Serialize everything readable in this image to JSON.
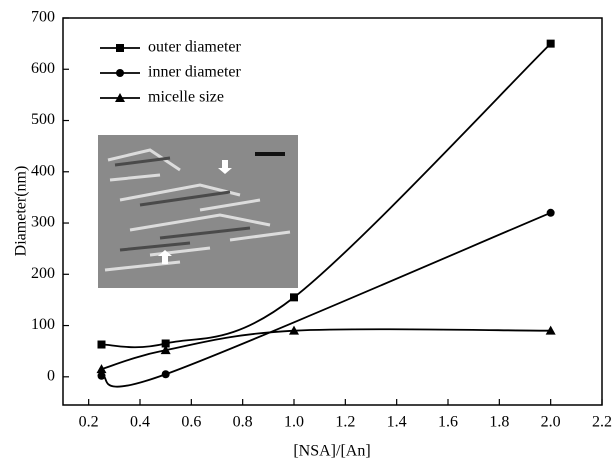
{
  "chart_data": {
    "type": "line",
    "xlabel": "[NSA]/[An]",
    "ylabel": "Diameter(nm)",
    "xlim": [
      0.1,
      2.2
    ],
    "ylim": [
      -55,
      700
    ],
    "xticks": [
      0.2,
      0.4,
      0.6,
      0.8,
      {
        "value": 1,
        "label": "1.0"
      },
      1.2,
      1.4,
      1.6,
      1.8,
      {
        "value": 2,
        "label": "2.0"
      },
      2.2
    ],
    "yticks": [
      0,
      100,
      200,
      300,
      400,
      500,
      600,
      700
    ],
    "legend": "upper-left",
    "series": [
      {
        "name": "outer diameter",
        "color": "#000000",
        "marker": "square",
        "x": [
          0.25,
          0.5,
          1,
          2
        ],
        "values": [
          63,
          65,
          155,
          650
        ]
      },
      {
        "name": "inner diameter",
        "color": "#000000",
        "marker": "circle",
        "x": [
          0.25,
          0.5,
          2
        ],
        "values": [
          2,
          5,
          320
        ]
      },
      {
        "name": "micelle size",
        "color": "#000000",
        "marker": "triangle",
        "x": [
          0.25,
          0.5,
          1,
          2
        ],
        "values": [
          15,
          52,
          90,
          90
        ]
      }
    ]
  }
}
